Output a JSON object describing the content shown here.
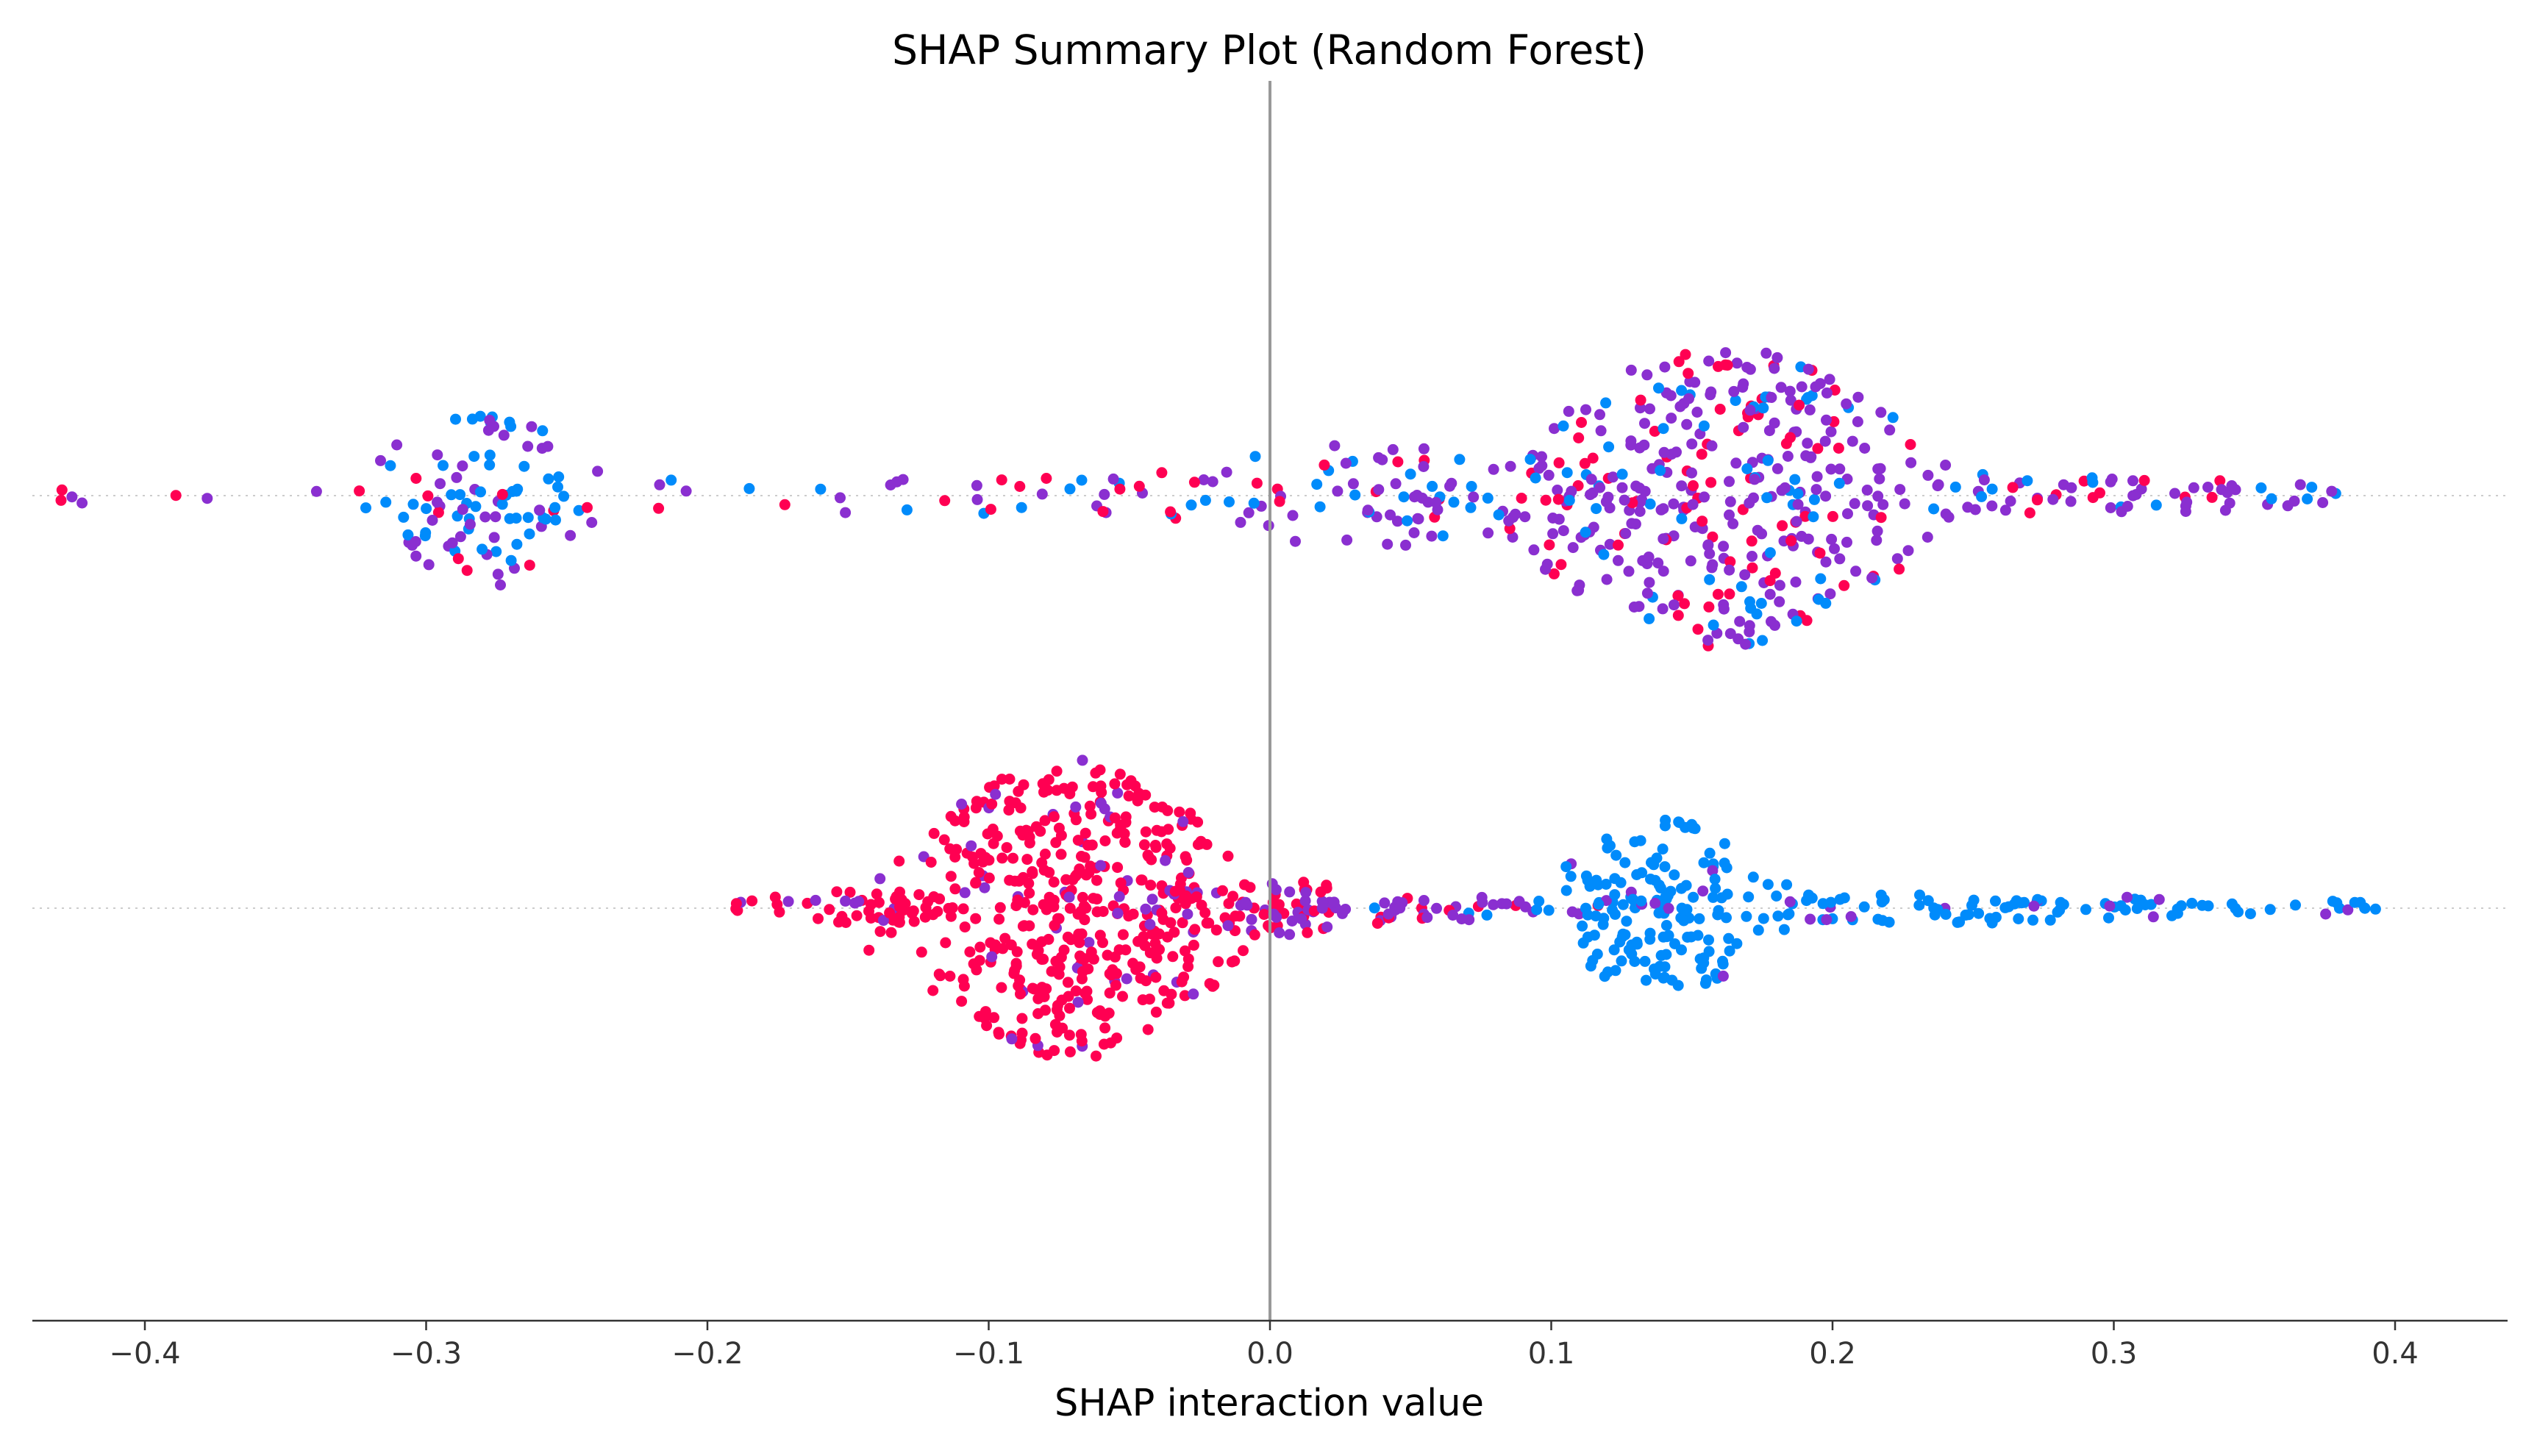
{
  "chart_data": {
    "type": "scatter",
    "subtype": "beeswarm",
    "title": "SHAP Summary Plot (Random Forest)",
    "xlabel": "SHAP interaction value",
    "ylabel": "",
    "xlim": [
      -0.44,
      0.44
    ],
    "x_ticks": [
      -0.4,
      -0.3,
      -0.2,
      -0.1,
      0.0,
      0.1,
      0.2,
      0.3,
      0.4
    ],
    "x_tick_labels": [
      "−0.4",
      "−0.3",
      "−0.2",
      "−0.1",
      "0.0",
      "0.1",
      "0.2",
      "0.3",
      "0.4"
    ],
    "zero_line": 0.0,
    "grid": false,
    "legend": "none",
    "colors": {
      "high": "#ff0052",
      "mid": "#8a2fd0",
      "low": "#008bfb",
      "zero_line": "#999999",
      "row_guide": "#cccccc",
      "axis": "#333333"
    },
    "rows": [
      {
        "index": 0,
        "feature_label": "",
        "seed": 17,
        "point_count": 700,
        "clusters": [
          {
            "center": -0.28,
            "spread": 0.018,
            "share": 0.14,
            "height": 0.62,
            "color_mix": [
              0.1,
              0.35,
              0.55
            ]
          },
          {
            "center": 0.16,
            "spread": 0.035,
            "share": 0.52,
            "height": 1.0,
            "color_mix": [
              0.22,
              0.63,
              0.15
            ]
          },
          {
            "center": 0.05,
            "spread": 0.06,
            "share": 0.14,
            "height": 0.35,
            "color_mix": [
              0.15,
              0.62,
              0.23
            ]
          },
          {
            "center": -0.12,
            "spread": 0.16,
            "share": 0.1,
            "height": 0.12,
            "color_mix": [
              0.3,
              0.45,
              0.25
            ]
          },
          {
            "center": 0.29,
            "spread": 0.05,
            "share": 0.1,
            "height": 0.12,
            "color_mix": [
              0.12,
              0.63,
              0.25
            ]
          }
        ],
        "x_range": [
          -0.43,
          0.38
        ]
      },
      {
        "index": 1,
        "feature_label": "",
        "seed": 91,
        "point_count": 900,
        "clusters": [
          {
            "center": -0.07,
            "spread": 0.03,
            "share": 0.5,
            "height": 1.0,
            "color_mix": [
              0.9,
              0.1,
              0.0
            ]
          },
          {
            "center": -0.14,
            "spread": 0.03,
            "share": 0.06,
            "height": 0.1,
            "color_mix": [
              0.82,
              0.18,
              0.0
            ]
          },
          {
            "center": 0.0,
            "spread": 0.025,
            "share": 0.1,
            "height": 0.18,
            "color_mix": [
              0.55,
              0.45,
              0.0
            ]
          },
          {
            "center": 0.07,
            "spread": 0.025,
            "share": 0.04,
            "height": 0.08,
            "color_mix": [
              0.3,
              0.6,
              0.1
            ]
          },
          {
            "center": 0.14,
            "spread": 0.018,
            "share": 0.18,
            "height": 0.6,
            "color_mix": [
              0.0,
              0.05,
              0.95
            ]
          },
          {
            "center": 0.24,
            "spread": 0.06,
            "share": 0.1,
            "height": 0.1,
            "color_mix": [
              0.0,
              0.1,
              0.9
            ]
          },
          {
            "center": 0.36,
            "spread": 0.03,
            "share": 0.02,
            "height": 0.05,
            "color_mix": [
              0.0,
              0.25,
              0.75
            ]
          }
        ],
        "x_range": [
          -0.19,
          0.394
        ]
      }
    ]
  }
}
